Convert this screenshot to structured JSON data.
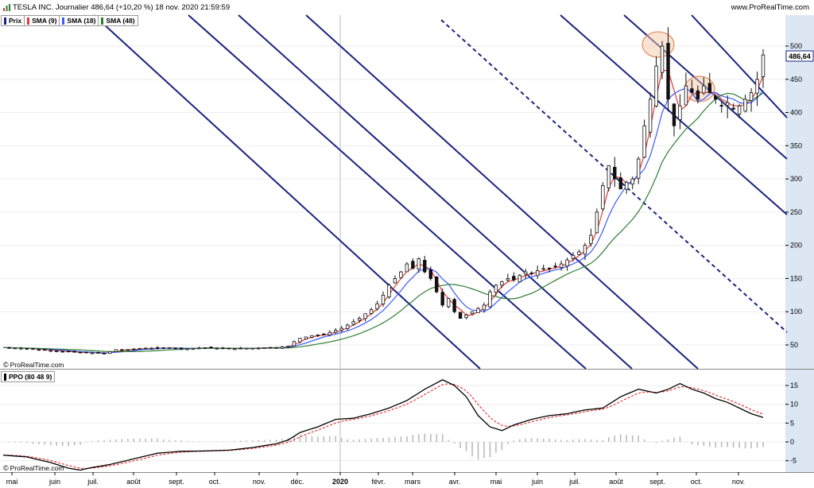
{
  "header": {
    "title": "TESLA INC. Journalier 486,64 (+10,20 %) 18 nov. 2020 21:59:59",
    "brand": "www.ProRealTime.com"
  },
  "price_legend": [
    {
      "label": "Prix",
      "color": "#1a237e"
    },
    {
      "label": "SMA (9)",
      "color": "#e53935"
    },
    {
      "label": "SMA (18)",
      "color": "#3d5afe"
    },
    {
      "label": "SMA (48)",
      "color": "#2e7d32"
    }
  ],
  "ppo_legend": [
    {
      "label": "PPO (80 48 9)",
      "color": "#000000"
    }
  ],
  "copyright": "ProRealTime.com",
  "last_price_label": "486,64",
  "chart_data": [
    {
      "type": "candlestick",
      "title": "TESLA INC. Journalier",
      "x_labels": [
        "mai",
        "juin",
        "juil.",
        "août",
        "sept.",
        "oct.",
        "nov.",
        "déc.",
        "2020",
        "févr.",
        "mars",
        "avr.",
        "mai",
        "juin",
        "juil.",
        "août",
        "sept.",
        "oct.",
        "nov."
      ],
      "y_ticks": [
        50,
        100,
        150,
        200,
        250,
        300,
        350,
        400,
        450,
        500
      ],
      "ylim": [
        0,
        520
      ],
      "last_value": 486.64,
      "series": [
        {
          "name": "Prix",
          "color": "#1a237e",
          "points": [
            [
              0,
              46
            ],
            [
              3,
              45
            ],
            [
              6,
              43
            ],
            [
              9,
              41
            ],
            [
              12,
              39
            ],
            [
              15,
              38
            ],
            [
              17,
              37
            ],
            [
              18,
              40
            ],
            [
              19,
              43
            ],
            [
              20,
              42
            ],
            [
              22,
              44
            ],
            [
              24,
              45
            ],
            [
              26,
              45
            ],
            [
              28,
              46
            ],
            [
              30,
              44
            ],
            [
              32,
              45
            ],
            [
              34,
              46
            ],
            [
              36,
              45
            ],
            [
              38,
              44
            ],
            [
              40,
              45
            ],
            [
              42,
              45
            ],
            [
              44,
              46
            ],
            [
              46,
              46
            ],
            [
              48,
              48
            ],
            [
              49,
              55
            ],
            [
              50,
              60
            ],
            [
              51,
              62
            ],
            [
              52,
              64
            ],
            [
              53,
              65
            ],
            [
              54,
              66
            ],
            [
              55,
              69
            ],
            [
              56,
              72
            ],
            [
              57,
              75
            ],
            [
              58,
              80
            ],
            [
              59,
              85
            ],
            [
              60,
              90
            ],
            [
              61,
              97
            ],
            [
              62,
              103
            ],
            [
              63,
              112
            ],
            [
              64,
              125
            ],
            [
              65,
              140
            ],
            [
              66,
              150
            ],
            [
              67,
              160
            ],
            [
              68,
              172
            ],
            [
              69,
              165
            ],
            [
              70,
              180
            ],
            [
              71,
              160
            ],
            [
              72,
              150
            ],
            [
              73,
              130
            ],
            [
              74,
              110
            ],
            [
              75,
              120
            ],
            [
              76,
              100
            ],
            [
              77,
              90
            ],
            [
              78,
              95
            ],
            [
              79,
              100
            ],
            [
              80,
              105
            ],
            [
              81,
              110
            ],
            [
              82,
              130
            ],
            [
              83,
              140
            ],
            [
              84,
              145
            ],
            [
              85,
              150
            ],
            [
              86,
              148
            ],
            [
              87,
              155
            ],
            [
              88,
              160
            ],
            [
              89,
              157
            ],
            [
              90,
              162
            ],
            [
              91,
              165
            ],
            [
              92,
              165
            ],
            [
              93,
              168
            ],
            [
              94,
              172
            ],
            [
              95,
              178
            ],
            [
              96,
              185
            ],
            [
              97,
              190
            ],
            [
              98,
              200
            ],
            [
              99,
              215
            ],
            [
              100,
              250
            ],
            [
              101,
              290
            ],
            [
              102,
              320
            ],
            [
              103,
              300
            ],
            [
              104,
              285
            ],
            [
              105,
              295
            ],
            [
              106,
              300
            ],
            [
              107,
              330
            ],
            [
              108,
              380
            ],
            [
              109,
              420
            ],
            [
              110,
              470
            ],
            [
              111,
              500
            ],
            [
              112,
              420
            ],
            [
              113,
              380
            ],
            [
              114,
              410
            ],
            [
              115,
              440
            ],
            [
              116,
              430
            ],
            [
              117,
              420
            ],
            [
              118,
              440
            ],
            [
              119,
              430
            ],
            [
              120,
              420
            ],
            [
              121,
              410
            ],
            [
              122,
              415
            ],
            [
              123,
              405
            ],
            [
              124,
              410
            ],
            [
              125,
              420
            ],
            [
              126,
              430
            ],
            [
              127,
              450
            ],
            [
              128,
              486.64
            ]
          ]
        },
        {
          "name": "SMA (9)",
          "color": "#e53935"
        },
        {
          "name": "SMA (18)",
          "color": "#3d5afe"
        },
        {
          "name": "SMA (48)",
          "color": "#2e7d32"
        }
      ]
    },
    {
      "type": "line",
      "title": "PPO (80 48 9)",
      "y_ticks": [
        -5,
        0,
        5,
        10,
        15
      ],
      "ylim": [
        -8,
        17
      ],
      "series": [
        {
          "name": "PPO",
          "color": "#000000",
          "points": [
            [
              0,
              -3.5
            ],
            [
              4,
              -4
            ],
            [
              8,
              -5.5
            ],
            [
              11,
              -7
            ],
            [
              13,
              -7.5
            ],
            [
              15,
              -6.8
            ],
            [
              18,
              -6
            ],
            [
              22,
              -4.5
            ],
            [
              26,
              -3
            ],
            [
              30,
              -2.5
            ],
            [
              34,
              -2.4
            ],
            [
              38,
              -2.2
            ],
            [
              42,
              -1.5
            ],
            [
              46,
              -0.5
            ],
            [
              48,
              0.5
            ],
            [
              50,
              2.5
            ],
            [
              53,
              4
            ],
            [
              56,
              6
            ],
            [
              59,
              6.3
            ],
            [
              62,
              7.5
            ],
            [
              65,
              9
            ],
            [
              68,
              11
            ],
            [
              71,
              14
            ],
            [
              74,
              16.5
            ],
            [
              76,
              15
            ],
            [
              78,
              12
            ],
            [
              80,
              7
            ],
            [
              82,
              4
            ],
            [
              84,
              3
            ],
            [
              86,
              4.5
            ],
            [
              89,
              6
            ],
            [
              92,
              7
            ],
            [
              95,
              7.5
            ],
            [
              98,
              8.5
            ],
            [
              101,
              9
            ],
            [
              104,
              12
            ],
            [
              107,
              14
            ],
            [
              110,
              13
            ],
            [
              112,
              14
            ],
            [
              114,
              15.5
            ],
            [
              116,
              14
            ],
            [
              118,
              13
            ],
            [
              120,
              11.5
            ],
            [
              122,
              10.5
            ],
            [
              124,
              9
            ],
            [
              126,
              7.5
            ],
            [
              128,
              6.5
            ]
          ]
        },
        {
          "name": "Signal",
          "color": "#e53935"
        }
      ]
    }
  ]
}
